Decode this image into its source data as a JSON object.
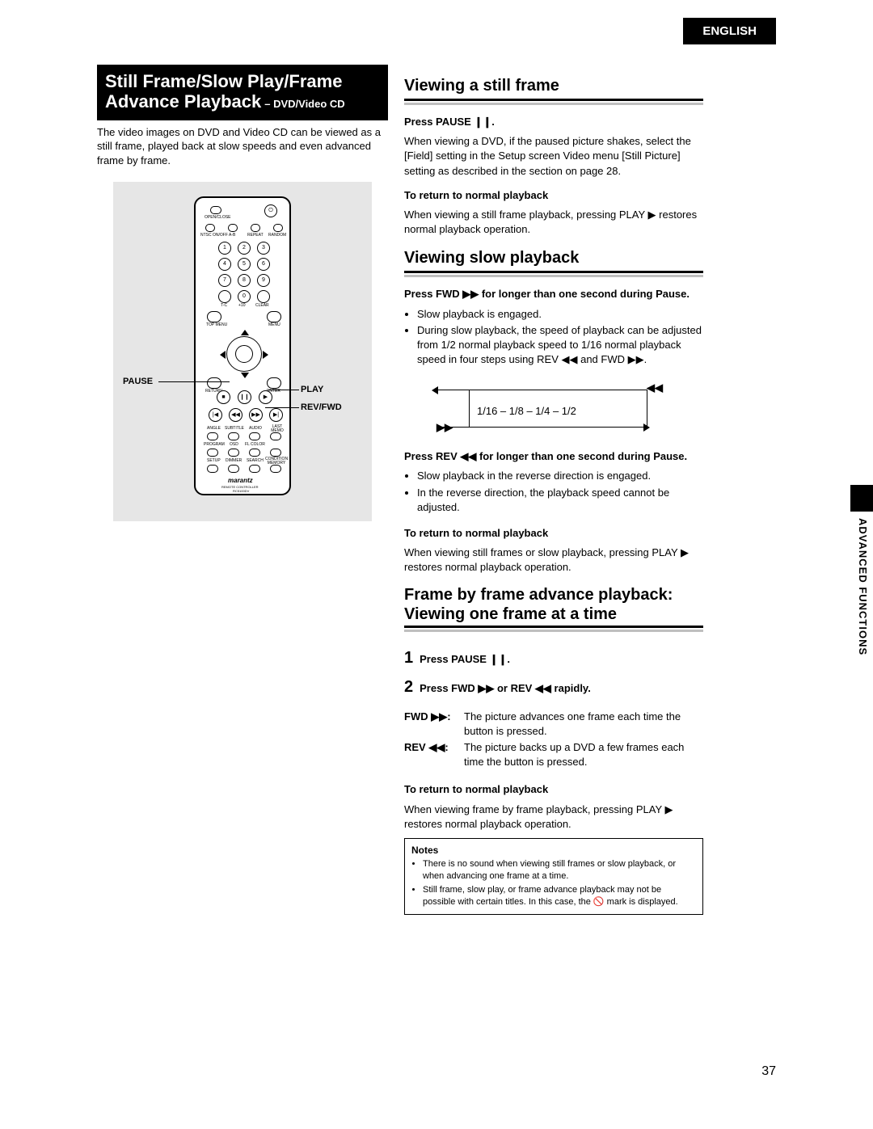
{
  "language_tab": "ENGLISH",
  "page_number": "37",
  "side_tab": "ADVANCED FUNCTIONS",
  "left": {
    "title_line1": "Still Frame/Slow Play/Frame",
    "title_line2": "Advance Playback",
    "title_suffix": " – DVD/Video CD",
    "intro": "The video images on DVD and Video CD can be viewed as a still frame, played back at slow speeds and even advanced frame by frame.",
    "callouts": {
      "pause": "PAUSE",
      "play": "PLAY",
      "revfwd": "REV/FWD"
    },
    "remote_labels": {
      "openclose": "OPEN/CLOSE",
      "ntsc": "NTSC ON/OFF",
      "ab": "A-B",
      "repeat": "REPEAT",
      "random": "RANDOM",
      "tc": "T-C",
      "plus10": "+10",
      "clear": "CLEAR",
      "topmenu": "TOP MENU",
      "menu": "MENU",
      "ret": "RETURN",
      "enter": "ENTER",
      "angle": "ANGLE",
      "subtitle": "SUBTITLE",
      "audio": "AUDIO",
      "lastmem": "LAST MEMO",
      "program": "PROGRAM",
      "osd": "OSD",
      "flcolor": "FL COLOR",
      "setup": "SETUP",
      "dimmer": "DIMMER",
      "search": "SEARCH",
      "condition": "CONDITION MEMORY",
      "brand": "marantz",
      "model1": "REMOTE CONTROLLER",
      "model2": "RC5100DV"
    }
  },
  "right": {
    "sec1_title": "Viewing a still frame",
    "sec1_press": "Press PAUSE ❙❙.",
    "sec1_body": "When viewing a DVD, if the paused picture shakes, select the [Field] setting in the Setup screen Video menu [Still Picture] setting as described in the section on page 28.",
    "sec1_return_h": "To return to normal playback",
    "sec1_return_body": "When viewing a still frame playback, pressing PLAY ▶ restores normal playback operation.",
    "sec2_title": "Viewing slow playback",
    "sec2_press_fwd": "Press FWD ▶▶ for longer than one second during Pause.",
    "sec2_bullets": [
      "Slow playback is engaged.",
      "During slow playback, the speed of playback can be adjusted from 1/2 normal playback speed to 1/16 normal playback speed in four steps using REV ◀◀ and FWD ▶▶."
    ],
    "speed_diagram": {
      "rev_symbol": "◀◀",
      "fwd_symbol": "▶▶",
      "text": "1/16 – 1/8 – 1/4 – 1/2",
      "vline_positions": [
        40,
        260
      ]
    },
    "sec2_press_rev": "Press REV ◀◀ for longer than one second during Pause.",
    "sec2_rev_bullets": [
      "Slow playback in the reverse direction is engaged.",
      "In the reverse direction, the playback speed cannot be adjusted."
    ],
    "sec2_return_h": "To return to normal playback",
    "sec2_return_body": "When viewing still frames or slow playback, pressing PLAY ▶ restores normal playback operation.",
    "sec3_title": "Frame by frame advance playback: Viewing one frame at a time",
    "step1": "Press PAUSE ❙❙.",
    "step2": "Press FWD ▶▶ or REV ◀◀ rapidly.",
    "fwd_label": "FWD ▶▶:",
    "fwd_desc": "The picture advances one frame each time the button is pressed.",
    "rev_label": "REV ◀◀:",
    "rev_desc": "The picture backs up a DVD a few frames each time the button is pressed.",
    "sec3_return_h": "To return to normal playback",
    "sec3_return_body": "When viewing frame by frame playback, pressing PLAY ▶ restores normal playback operation.",
    "notes_title": "Notes",
    "notes": [
      "There is no sound when viewing still frames or slow playback, or when advancing one frame at a time.",
      "Still frame, slow play, or frame advance playback may not be possible with certain titles. In this case, the 🚫 mark is displayed."
    ]
  }
}
